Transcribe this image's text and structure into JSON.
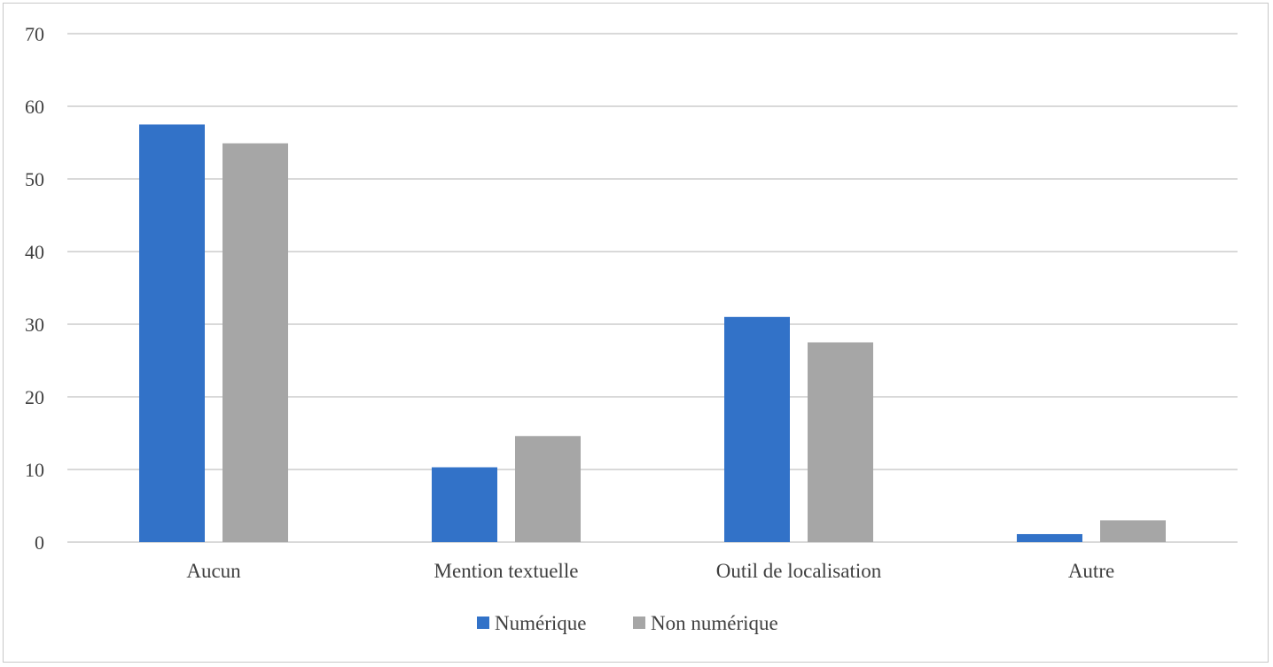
{
  "chart_data": {
    "type": "bar",
    "categories": [
      "Aucun",
      "Mention textuelle",
      "Outil de localisation",
      "Autre"
    ],
    "series": [
      {
        "name": "Numérique",
        "values": [
          57.5,
          10.3,
          31.0,
          1.1
        ],
        "color": "#3272c8"
      },
      {
        "name": "Non numérique",
        "values": [
          54.9,
          14.6,
          27.5,
          3.0
        ],
        "color": "#a6a6a6"
      }
    ],
    "title": "",
    "xlabel": "",
    "ylabel": "",
    "ylim": [
      0,
      70
    ],
    "yticks": [
      0,
      10,
      20,
      30,
      40,
      50,
      60,
      70
    ],
    "grid": true,
    "legend_position": "bottom-center",
    "gridline_color": "#d9d9d9"
  }
}
